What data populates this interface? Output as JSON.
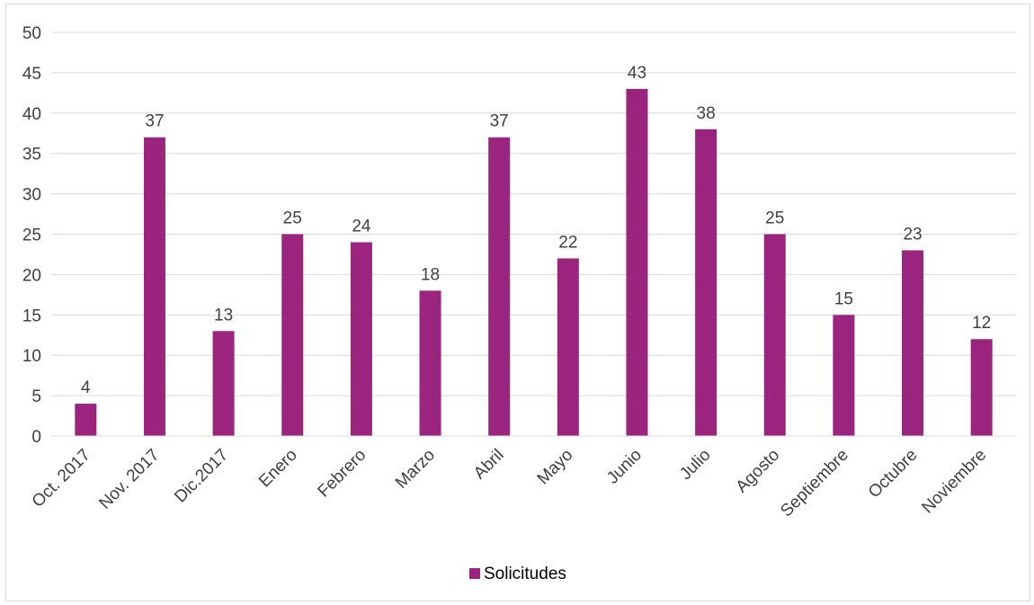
{
  "chart_data": {
    "type": "bar",
    "categories": [
      "Oct. 2017",
      "Nov. 2017",
      "Dic.2017",
      "Enero",
      "Febrero",
      "Marzo",
      "Abril",
      "Mayo",
      "Junio",
      "Julio",
      "Agosto",
      "Septiembre",
      "Octubre",
      "Noviembre"
    ],
    "series": [
      {
        "name": "Solicitudes",
        "values": [
          4,
          37,
          13,
          25,
          24,
          18,
          37,
          22,
          43,
          38,
          25,
          15,
          23,
          12
        ],
        "color": "#9b247f"
      }
    ],
    "ylim": [
      0,
      50
    ],
    "yticks": [
      0,
      5,
      10,
      15,
      20,
      25,
      30,
      35,
      40,
      45,
      50
    ],
    "grid": true,
    "legend": "bottom-center",
    "data_labels": true
  }
}
